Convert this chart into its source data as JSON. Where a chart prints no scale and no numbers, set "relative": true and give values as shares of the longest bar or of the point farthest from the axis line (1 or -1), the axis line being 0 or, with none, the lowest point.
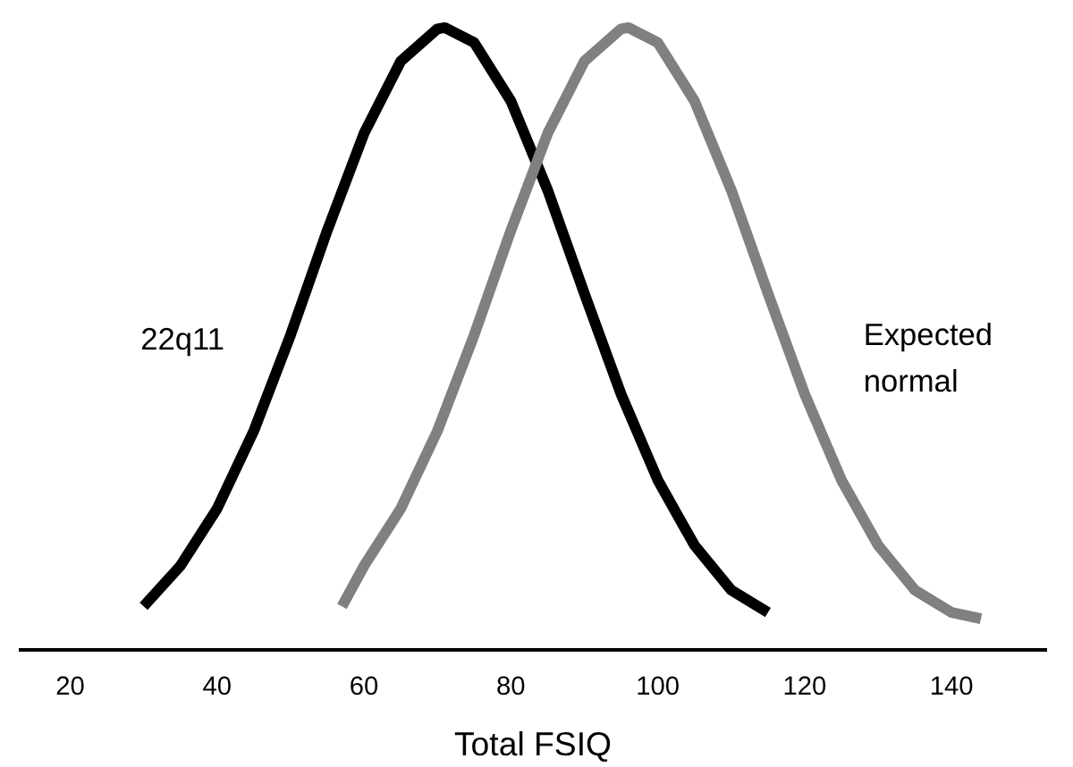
{
  "chart_data": {
    "type": "line",
    "relative": true,
    "xlabel": "Total FSIQ",
    "xlim": [
      13,
      153
    ],
    "xticks": [
      20,
      40,
      60,
      80,
      100,
      120,
      140
    ],
    "tick_labels": "x",
    "grid": false,
    "marker": "none",
    "line_style": "solid",
    "series": [
      {
        "name": "22q11",
        "color": "#000000",
        "x": [
          30,
          35,
          40,
          45,
          50,
          55,
          60,
          65,
          70,
          71,
          75,
          80,
          85,
          90,
          95,
          100,
          105,
          110,
          115
        ],
        "values": [
          0.07,
          0.135,
          0.227,
          0.352,
          0.506,
          0.674,
          0.83,
          0.946,
          0.998,
          1,
          0.976,
          0.882,
          0.739,
          0.573,
          0.411,
          0.273,
          0.168,
          0.096,
          0.06
        ]
      },
      {
        "name": "Expected\nnormal",
        "color": "#808080",
        "x": [
          57,
          60,
          65,
          70,
          75,
          80,
          85,
          90,
          95,
          96,
          100,
          105,
          110,
          115,
          120,
          125,
          130,
          135,
          140,
          144
        ],
        "values": [
          0.07,
          0.135,
          0.227,
          0.352,
          0.506,
          0.674,
          0.83,
          0.946,
          0.998,
          1,
          0.976,
          0.882,
          0.739,
          0.573,
          0.411,
          0.273,
          0.168,
          0.096,
          0.06,
          0.05
        ]
      }
    ]
  }
}
